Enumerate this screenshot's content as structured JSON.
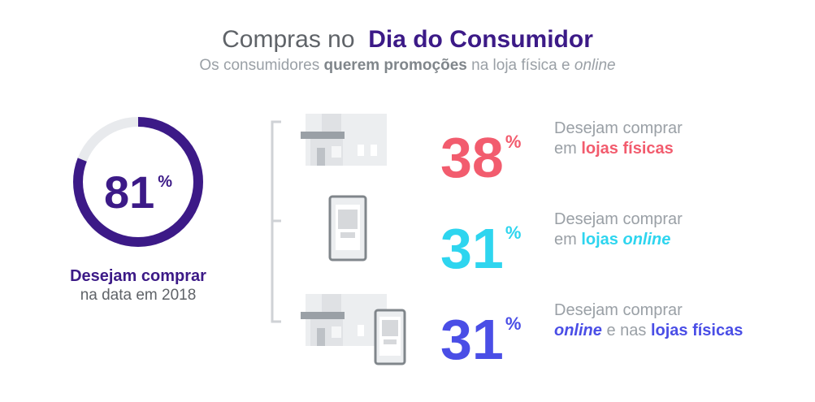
{
  "header": {
    "title_plain": "Compras no",
    "title_bold": "Dia do Consumidor",
    "subtitle_1": "Os consumidores ",
    "subtitle_bold": "querem promoções",
    "subtitle_2": " na loja física e ",
    "subtitle_italic": "online"
  },
  "chart_data": {
    "type": "donut",
    "value": 81,
    "unit": "%",
    "ring_colors": {
      "filled": "#3c1a87",
      "remaining": "#e8eaed"
    },
    "caption_bold": "Desejam comprar",
    "caption": "na data em 2018",
    "breakdown": [
      {
        "value": 38,
        "unit": "%",
        "color": "#f25c6e",
        "icon": "store-icon",
        "text_1": "Desejam comprar",
        "text_2_prefix": "em ",
        "text_2_bold": "lojas físicas"
      },
      {
        "value": 31,
        "unit": "%",
        "color": "#2ed5ef",
        "icon": "smartphone-icon",
        "text_1": "Desejam comprar",
        "text_2_prefix": "em ",
        "text_2_bold": "lojas ",
        "text_2_bold_italic": "online"
      },
      {
        "value": 31,
        "unit": "%",
        "color": "#4a4ee6",
        "icon": "store-and-phone-icon",
        "text_1": "Desejam comprar",
        "text_2_bold_italic": "online",
        "text_2_mid": " e nas ",
        "text_2_bold": "lojas físicas"
      }
    ]
  }
}
